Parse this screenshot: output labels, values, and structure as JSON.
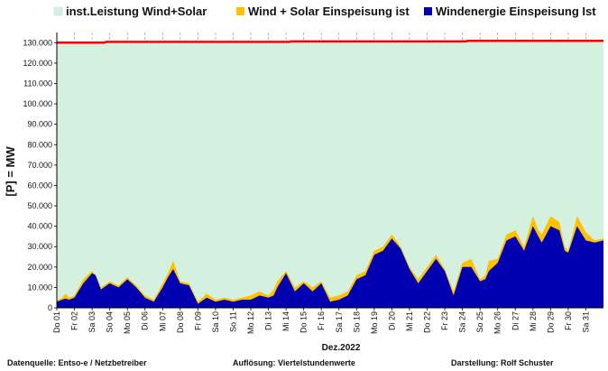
{
  "chart_data": {
    "type": "area",
    "ylabel": "[P] =  MW",
    "xlabel": "Dez.2022",
    "ylim": [
      0,
      135000
    ],
    "yticks": [
      0,
      10000,
      20000,
      30000,
      40000,
      50000,
      60000,
      70000,
      80000,
      90000,
      100000,
      110000,
      120000,
      130000
    ],
    "ytick_labels": [
      "0",
      "10.000",
      "20.000",
      "30.000",
      "40.000",
      "50.000",
      "60.000",
      "70.000",
      "80.000",
      "90.000",
      "100.000",
      "110.000",
      "120.000",
      "130.000"
    ],
    "x_unit": "day of December 2022",
    "xlim": [
      1,
      32
    ],
    "xtick_labels": [
      "Do 01",
      "Fr 02",
      "Sa 03",
      "So 04",
      "Mo 05",
      "Di 06",
      "Mi 07",
      "Do 08",
      "Fr 09",
      "Sa 10",
      "So 11",
      "Mo 12",
      "Di 13",
      "Mi 14",
      "Do 15",
      "Fr 16",
      "Sa 17",
      "So 18",
      "Mo 19",
      "Di 20",
      "Mi 21",
      "Do 22",
      "Fr 23",
      "Sa 24",
      "So 25",
      "Mo 26",
      "Di 27",
      "Mi 28",
      "Do 29",
      "Fr 30",
      "Sa 31"
    ],
    "grid": true,
    "legend_position": "top",
    "series": [
      {
        "name": "inst.Leistung Wind+Solar",
        "color": "#d4f0de",
        "line_color": "#ff0000",
        "x": [
          1,
          3.7,
          3.8,
          14.2,
          14.3,
          24.2,
          24.3,
          32
        ],
        "values": [
          130000,
          130000,
          130400,
          130400,
          130600,
          130600,
          130900,
          130900
        ]
      },
      {
        "name": "Wind + Solar Einspeisung ist",
        "color": "#ffc000",
        "x": [
          1,
          1.3,
          1.5,
          1.7,
          2,
          2.5,
          3,
          3.2,
          3.5,
          4,
          4.5,
          5,
          5.5,
          6,
          6.5,
          7,
          7.3,
          7.6,
          8,
          8.5,
          9,
          9.5,
          10,
          10.5,
          11,
          11.5,
          12,
          12.5,
          13,
          13.3,
          13.5,
          14,
          14.5,
          15,
          15.5,
          16,
          16.5,
          17,
          17.5,
          18,
          18.5,
          19,
          19.5,
          20,
          20.5,
          21,
          21.5,
          22,
          22.5,
          23,
          23.5,
          24,
          24.5,
          25,
          25.3,
          25.5,
          26,
          26.5,
          27,
          27.5,
          28,
          28.3,
          28.5,
          29,
          29.5,
          29.8,
          30,
          30.5,
          31,
          31.5,
          32
        ],
        "values": [
          3500,
          5000,
          7000,
          5000,
          6000,
          14000,
          18000,
          16000,
          10000,
          13000,
          11000,
          15000,
          11000,
          6000,
          4000,
          12000,
          17000,
          23000,
          13000,
          12000,
          3000,
          7000,
          4000,
          5000,
          4000,
          5000,
          6000,
          8000,
          6000,
          9000,
          13000,
          18000,
          10000,
          13000,
          10000,
          13000,
          5000,
          6000,
          8000,
          16000,
          18000,
          28000,
          30000,
          36000,
          30000,
          20000,
          14000,
          20000,
          26000,
          19000,
          8000,
          22000,
          24000,
          14000,
          16000,
          23000,
          24000,
          36000,
          38000,
          30000,
          45000,
          38000,
          36000,
          45000,
          42000,
          30000,
          28000,
          45000,
          37000,
          33000,
          34000
        ]
      },
      {
        "name": "Windenergie Einspeisung Ist",
        "color": "#0000b0",
        "x": [
          1,
          1.3,
          1.5,
          1.7,
          2,
          2.5,
          3,
          3.2,
          3.5,
          4,
          4.5,
          5,
          5.5,
          6,
          6.5,
          7,
          7.3,
          7.6,
          8,
          8.5,
          9,
          9.5,
          10,
          10.5,
          11,
          11.5,
          12,
          12.5,
          13,
          13.3,
          13.5,
          14,
          14.5,
          15,
          15.5,
          16,
          16.5,
          17,
          17.5,
          18,
          18.5,
          19,
          19.5,
          20,
          20.5,
          21,
          21.5,
          22,
          22.5,
          23,
          23.5,
          24,
          24.5,
          25,
          25.3,
          25.5,
          26,
          26.5,
          27,
          27.5,
          28,
          28.3,
          28.5,
          29,
          29.5,
          29.8,
          30,
          30.5,
          31,
          31.5,
          32
        ],
        "values": [
          3000,
          4000,
          4500,
          4000,
          5000,
          12000,
          17000,
          16000,
          9000,
          12000,
          10000,
          14000,
          10000,
          5000,
          3000,
          10000,
          15000,
          19000,
          12000,
          11000,
          2000,
          5000,
          3000,
          4000,
          3000,
          4000,
          4000,
          6000,
          5000,
          6000,
          10000,
          17000,
          8000,
          12000,
          8000,
          12000,
          3000,
          4000,
          6000,
          14000,
          16000,
          26000,
          28000,
          34000,
          29000,
          19000,
          12000,
          18000,
          24000,
          18000,
          6000,
          20000,
          20000,
          13000,
          14000,
          18000,
          22000,
          33000,
          35000,
          28000,
          40000,
          35000,
          32000,
          40000,
          38000,
          28000,
          27000,
          40000,
          33000,
          32000,
          33000
        ]
      }
    ]
  },
  "footer": {
    "source": "Datenquelle:  Entso-e  / Netzbetreiber",
    "resolution": "Auflösung: Viertelstundenwerte",
    "author": "Darstellung:  Rolf Schuster"
  }
}
